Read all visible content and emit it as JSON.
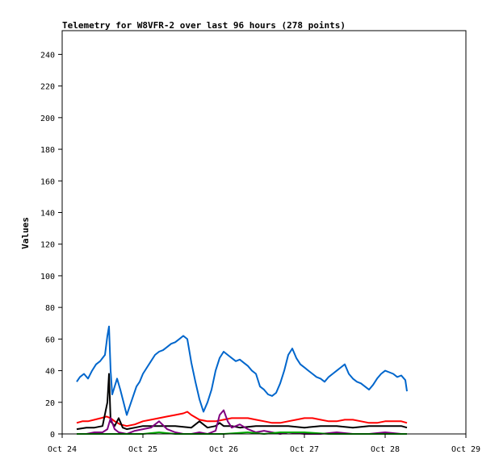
{
  "chart_data": {
    "type": "line",
    "title": "Telemetry for W8VFR-2 over last 96 hours (278 points)",
    "xlabel": "",
    "ylabel": "Values",
    "xlim": [
      "Oct 24",
      "Oct 29"
    ],
    "ylim": [
      0,
      255
    ],
    "grid": false,
    "legend": "none",
    "x_ticks": [
      "Oct 24",
      "Oct 25",
      "Oct 26",
      "Oct 27",
      "Oct 28",
      "Oct 29"
    ],
    "y_ticks": [
      0,
      20,
      40,
      60,
      80,
      100,
      120,
      140,
      160,
      180,
      200,
      220,
      240
    ],
    "series": [
      {
        "color": "#0066cc",
        "x": [
          24.18,
          24.22,
          24.27,
          24.32,
          24.37,
          24.42,
          24.47,
          24.5,
          24.53,
          24.56,
          24.58,
          24.6,
          24.62,
          24.65,
          24.68,
          24.72,
          24.76,
          24.8,
          24.84,
          24.88,
          24.92,
          24.96,
          25.0,
          25.05,
          25.1,
          25.15,
          25.2,
          25.25,
          25.3,
          25.35,
          25.4,
          25.45,
          25.5,
          25.55,
          25.6,
          25.65,
          25.7,
          25.75,
          25.8,
          25.85,
          25.9,
          25.95,
          26.0,
          26.05,
          26.1,
          26.15,
          26.2,
          26.25,
          26.3,
          26.35,
          26.4,
          26.45,
          26.5,
          26.55,
          26.6,
          26.65,
          26.7,
          26.75,
          26.8,
          26.85,
          26.9,
          26.95,
          27.0,
          27.05,
          27.1,
          27.15,
          27.2,
          27.25,
          27.3,
          27.35,
          27.4,
          27.45,
          27.5,
          27.55,
          27.6,
          27.65,
          27.7,
          27.75,
          27.8,
          27.85,
          27.9,
          27.95,
          28.0,
          28.05,
          28.1,
          28.15,
          28.2,
          28.25,
          28.27
        ],
        "values": [
          33,
          36,
          38,
          35,
          40,
          44,
          46,
          48,
          50,
          62,
          68,
          40,
          25,
          30,
          35,
          28,
          20,
          12,
          18,
          24,
          30,
          33,
          38,
          42,
          46,
          50,
          52,
          53,
          55,
          57,
          58,
          60,
          62,
          60,
          45,
          33,
          22,
          14,
          20,
          28,
          40,
          48,
          52,
          50,
          48,
          46,
          47,
          45,
          43,
          40,
          38,
          30,
          28,
          25,
          24,
          26,
          32,
          40,
          50,
          54,
          48,
          44,
          42,
          40,
          38,
          36,
          35,
          33,
          36,
          38,
          40,
          42,
          44,
          38,
          35,
          33,
          32,
          30,
          28,
          31,
          35,
          38,
          40,
          39,
          38,
          36,
          37,
          34,
          27
        ]
      },
      {
        "color": "#ff0000",
        "x": [
          24.18,
          24.25,
          24.32,
          24.4,
          24.48,
          24.55,
          24.6,
          24.65,
          24.72,
          24.8,
          24.9,
          25.0,
          25.1,
          25.2,
          25.3,
          25.4,
          25.5,
          25.55,
          25.6,
          25.7,
          25.8,
          25.9,
          26.0,
          26.1,
          26.2,
          26.3,
          26.4,
          26.5,
          26.6,
          26.7,
          26.8,
          26.9,
          27.0,
          27.1,
          27.2,
          27.3,
          27.4,
          27.5,
          27.6,
          27.7,
          27.8,
          27.9,
          28.0,
          28.1,
          28.2,
          28.27
        ],
        "values": [
          7,
          8,
          8,
          9,
          10,
          11,
          10,
          8,
          6,
          5,
          6,
          8,
          9,
          10,
          11,
          12,
          13,
          14,
          12,
          9,
          8,
          8,
          9,
          10,
          10,
          10,
          9,
          8,
          7,
          7,
          8,
          9,
          10,
          10,
          9,
          8,
          8,
          9,
          9,
          8,
          7,
          7,
          8,
          8,
          8,
          7
        ]
      },
      {
        "color": "#000000",
        "x": [
          24.18,
          24.3,
          24.4,
          24.5,
          24.56,
          24.58,
          24.6,
          24.65,
          24.7,
          24.75,
          24.8,
          24.9,
          25.0,
          25.2,
          25.4,
          25.6,
          25.7,
          25.8,
          25.9,
          25.95,
          26.0,
          26.1,
          26.2,
          26.4,
          26.6,
          26.8,
          27.0,
          27.2,
          27.4,
          27.6,
          27.8,
          28.0,
          28.2,
          28.27
        ],
        "values": [
          3,
          4,
          4,
          5,
          20,
          38,
          8,
          5,
          10,
          4,
          3,
          4,
          5,
          5,
          5,
          4,
          8,
          4,
          5,
          7,
          5,
          5,
          4,
          5,
          5,
          5,
          4,
          5,
          5,
          4,
          5,
          5,
          5,
          4
        ]
      },
      {
        "color": "#800080",
        "x": [
          24.18,
          24.3,
          24.4,
          24.5,
          24.56,
          24.6,
          24.65,
          24.7,
          24.8,
          24.9,
          25.0,
          25.1,
          25.2,
          25.3,
          25.4,
          25.5,
          25.6,
          25.7,
          25.8,
          25.9,
          25.95,
          26.0,
          26.05,
          26.1,
          26.2,
          26.3,
          26.4,
          26.5,
          26.6,
          26.7,
          26.8,
          27.0,
          27.2,
          27.4,
          27.6,
          27.8,
          28.0,
          28.2,
          28.27
        ],
        "values": [
          0,
          0,
          1,
          1,
          3,
          10,
          3,
          1,
          0,
          2,
          3,
          4,
          8,
          3,
          1,
          0,
          0,
          1,
          0,
          2,
          12,
          15,
          8,
          4,
          6,
          3,
          1,
          2,
          1,
          0,
          1,
          0,
          0,
          1,
          0,
          0,
          1,
          0,
          0
        ]
      },
      {
        "color": "#00aa00",
        "x": [
          24.18,
          24.5,
          24.8,
          25.0,
          25.2,
          25.4,
          25.6,
          25.8,
          26.0,
          26.3,
          26.5,
          26.7,
          27.0,
          27.3,
          27.6,
          27.8,
          28.0,
          28.27
        ],
        "values": [
          0,
          0,
          0,
          0,
          1,
          0,
          0,
          0,
          0,
          1,
          0,
          1,
          1,
          0,
          0,
          0,
          0,
          0
        ]
      }
    ]
  }
}
